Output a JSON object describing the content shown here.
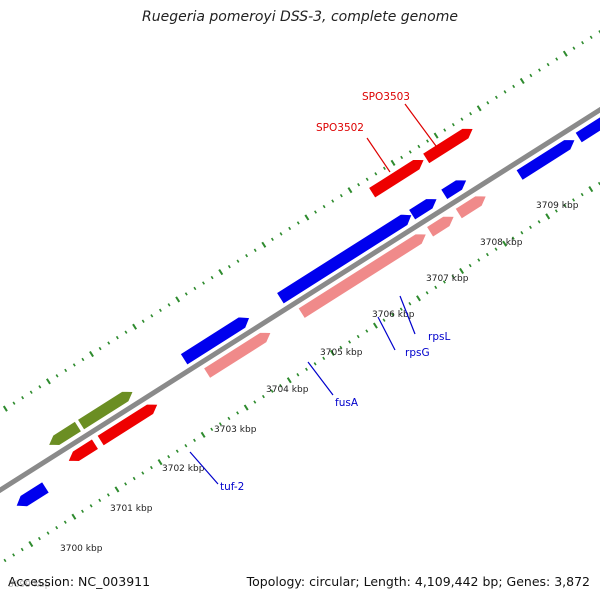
{
  "title": "Ruegeria pomeroyi DSS-3, complete genome",
  "footer": {
    "accession": "Accession: NC_003911",
    "summary": "Topology: circular; Length: 4,109,442 bp; Genes: 3,872"
  },
  "colors": {
    "backbone": "#8a8a8a",
    "tick": "#2e8b2e",
    "cds_strand": "#0000ee",
    "cds_strand_red": "#ee0000",
    "gene_light": "#f08a8a",
    "gene_olive": "#6b8e23",
    "label_blue": "#0000cc",
    "label_red": "#dd0000"
  },
  "position_labels": [
    "3699 kbp",
    "3700 kbp",
    "3701 kbp",
    "3702 kbp",
    "3703 kbp",
    "3704 kbp",
    "3705 kbp",
    "3706 kbp",
    "3707 kbp",
    "3708 kbp",
    "3709 kbp"
  ],
  "gene_labels": [
    {
      "name": "tuf-2",
      "color": "blue"
    },
    {
      "name": "fusA",
      "color": "blue"
    },
    {
      "name": "rpsG",
      "color": "blue"
    },
    {
      "name": "rpsL",
      "color": "blue"
    },
    {
      "name": "SPO3502",
      "color": "red"
    },
    {
      "name": "SPO3503",
      "color": "red"
    }
  ]
}
